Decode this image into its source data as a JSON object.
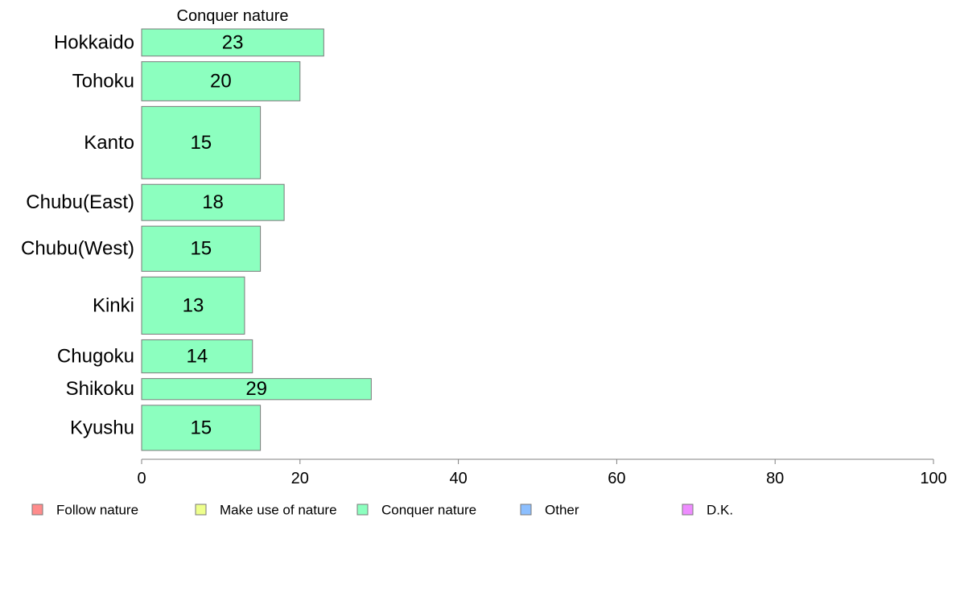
{
  "chart_data": {
    "type": "bar",
    "orientation": "horizontal",
    "title": "Conquer nature",
    "categories": [
      "Hokkaido",
      "Tohoku",
      "Kanto",
      "Chubu(East)",
      "Chubu(West)",
      "Kinki",
      "Chugoku",
      "Shikoku",
      "Kyushu"
    ],
    "bar_weights": [
      4.5,
      6.5,
      12,
      6,
      7.5,
      9.5,
      5.5,
      3.5,
      7.5
    ],
    "series": [
      {
        "name": "Conquer nature",
        "values": [
          23,
          20,
          15,
          18,
          15,
          13,
          14,
          29,
          15
        ],
        "labels": [
          "23",
          "20",
          "15",
          "18",
          "15",
          "13",
          "14",
          "29",
          "15"
        ],
        "color": "#8CFFBF"
      }
    ],
    "xlim": [
      0,
      100
    ],
    "xticks": [
      0,
      20,
      40,
      60,
      80,
      100
    ],
    "xtick_labels": [
      "0",
      "20",
      "40",
      "60",
      "80",
      "100"
    ],
    "grid": false,
    "legend_position": "bottom",
    "legend": [
      {
        "label": "Follow nature",
        "color": "#FF8C8C"
      },
      {
        "label": "Make use of nature",
        "color": "#EEFF8C"
      },
      {
        "label": "Conquer nature",
        "color": "#8CFFBF"
      },
      {
        "label": "Other",
        "color": "#8CBFFF"
      },
      {
        "label": "D.K.",
        "color": "#EE8CFF"
      }
    ]
  }
}
